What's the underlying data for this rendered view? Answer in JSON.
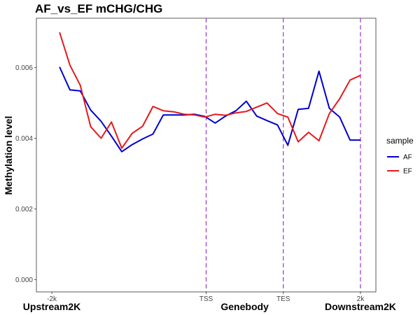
{
  "chart_data": {
    "type": "line",
    "title": "AF_vs_EF  mCHG/CHG",
    "ylabel": "Methylation level",
    "xlim": [
      -2.2,
      2.2
    ],
    "ylim": [
      -0.00035,
      0.0074
    ],
    "x_ticks": [
      {
        "x": -2,
        "label": "-2k"
      },
      {
        "x": 0,
        "label": "TSS"
      },
      {
        "x": 1,
        "label": "TES"
      },
      {
        "x": 2,
        "label": "2k"
      }
    ],
    "y_ticks": [
      {
        "y": 0.0,
        "label": "0.000"
      },
      {
        "y": 0.002,
        "label": "0.002"
      },
      {
        "y": 0.004,
        "label": "0.004"
      },
      {
        "y": 0.006,
        "label": "0.006"
      }
    ],
    "region_labels": [
      {
        "x": -2,
        "label": "Upstream2K"
      },
      {
        "x": 0.5,
        "label": "Genebody"
      },
      {
        "x": 2,
        "label": "Downstream2K"
      }
    ],
    "vlines": [
      0,
      1,
      2
    ],
    "vline_color": "#9932CC",
    "grid": false,
    "legend": {
      "title": "sample",
      "position": "right"
    },
    "x": [
      -1.9,
      -1.8,
      -1.7,
      -1.6,
      -1.5,
      -1.4,
      -1.3,
      -1.2,
      -1.1,
      -1.0,
      -0.9,
      -0.8,
      -0.7,
      -0.6,
      -0.5,
      -0.4,
      -0.3,
      -0.2,
      -0.1,
      0.0,
      0.1,
      0.2,
      0.3,
      0.4,
      0.5,
      0.6,
      0.7,
      0.8,
      0.9,
      1.0,
      1.1,
      1.2,
      1.3,
      1.4,
      1.5,
      1.6,
      1.7,
      1.8,
      1.9,
      2.0
    ],
    "series": [
      {
        "name": "AF",
        "color": "#0000CD",
        "values": [
          0.00602,
          0.00537,
          0.00534,
          0.0048,
          0.00448,
          0.00406,
          0.00362,
          0.00382,
          0.00398,
          0.00412,
          0.00466,
          0.00466,
          0.00466,
          0.00468,
          0.00462,
          0.00443,
          0.00463,
          0.00478,
          0.00505,
          0.00463,
          0.0045,
          0.00438,
          0.0038,
          0.00482,
          0.00485,
          0.0059,
          0.00485,
          0.0046,
          0.00395,
          0.00395,
          0.00395,
          0.00395,
          0.00395,
          0.00395,
          0.00395,
          0.00395,
          0.00395,
          0.00395,
          0.00395,
          0.00395
        ]
      },
      {
        "name": "EF",
        "color": "#E41A1C",
        "values": [
          0.007,
          0.00607,
          0.0055,
          0.00433,
          0.004,
          0.00446,
          0.00372,
          0.00414,
          0.00434,
          0.0049,
          0.00478,
          0.00475,
          0.00468,
          0.00466,
          0.0046,
          0.00468,
          0.00465,
          0.00472,
          0.00476,
          0.00488,
          0.005,
          0.0047,
          0.0046,
          0.0039,
          0.00417,
          0.00393,
          0.0047,
          0.00512,
          0.00565,
          0.00578,
          0.00578,
          0.00578,
          0.00578,
          0.00578,
          0.00578,
          0.00578,
          0.00578,
          0.00578,
          0.00578,
          0.00578
        ]
      }
    ]
  }
}
